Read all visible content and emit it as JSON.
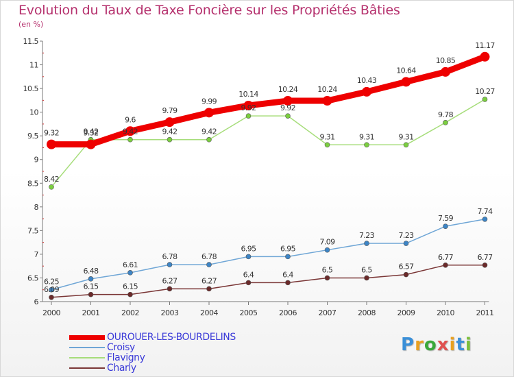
{
  "header": {
    "title": "Evolution du Taux de Taxe Foncière sur les Propriétés Bâties",
    "unit": "(en %)"
  },
  "brand": {
    "logo_text": "Proxiti"
  },
  "colors": {
    "title": "#b5306d",
    "legend_text": "#3a3ad8",
    "axis": "#7a7a7a"
  },
  "chart_data": {
    "type": "line",
    "title": "Evolution du Taux de Taxe Foncière sur les Propriétés Bâties",
    "ylabel": "(en %)",
    "xlabel": "",
    "ylim": [
      6,
      11.5
    ],
    "yticks": [
      "6",
      "6.5",
      "7",
      "7.5",
      "8",
      "8.5",
      "9",
      "9.5",
      "10",
      "10.5",
      "11",
      "11.5"
    ],
    "x": [
      "2000",
      "2001",
      "2002",
      "2003",
      "2004",
      "2005",
      "2006",
      "2007",
      "2008",
      "2009",
      "2010",
      "2011"
    ],
    "grid": false,
    "legend_position": "bottom-left",
    "series": [
      {
        "name": "OUROUER-LES-BOURDELINS",
        "color": "#ee0000",
        "marker": "#ee0000",
        "values": [
          9.32,
          9.32,
          9.6,
          9.79,
          9.99,
          10.14,
          10.24,
          10.24,
          10.43,
          10.64,
          10.85,
          11.17
        ],
        "labels": [
          "9.32",
          "9.32",
          "9.6",
          "9.79",
          "9.99",
          "10.14",
          "10.24",
          "10.24",
          "10.43",
          "10.64",
          "10.85",
          "11.17"
        ]
      },
      {
        "name": "Croisy",
        "color": "#6fa6d6",
        "marker": "#3d85c6",
        "values": [
          6.25,
          6.48,
          6.61,
          6.78,
          6.78,
          6.95,
          6.95,
          7.09,
          7.23,
          7.23,
          7.59,
          7.74
        ],
        "labels": [
          "6.25",
          "6.48",
          "6.61",
          "6.78",
          "6.78",
          "6.95",
          "6.95",
          "7.09",
          "7.23",
          "7.23",
          "7.59",
          "7.74"
        ]
      },
      {
        "name": "Flavigny",
        "color": "#a6dd7a",
        "marker": "#7bcf3f",
        "values": [
          8.42,
          9.42,
          9.42,
          9.42,
          9.42,
          9.92,
          9.92,
          9.31,
          9.31,
          9.31,
          9.78,
          10.27
        ],
        "labels": [
          "8.42",
          "9.42",
          "9.42",
          "9.42",
          "9.42",
          "9.92",
          "9.92",
          "9.31",
          "9.31",
          "9.31",
          "9.78",
          "10.27"
        ]
      },
      {
        "name": "Charly",
        "color": "#7a3636",
        "marker": "#6b2a2a",
        "values": [
          6.09,
          6.15,
          6.15,
          6.27,
          6.27,
          6.4,
          6.4,
          6.5,
          6.5,
          6.57,
          6.77,
          6.77
        ],
        "labels": [
          "6.09",
          "6.15",
          "6.15",
          "6.27",
          "6.27",
          "6.4",
          "6.4",
          "6.5",
          "6.5",
          "6.57",
          "6.77",
          "6.77"
        ]
      }
    ]
  }
}
